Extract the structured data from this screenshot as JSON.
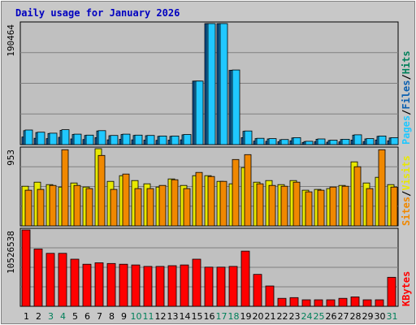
{
  "chart_data": {
    "type": "bar",
    "title": "Daily usage for January 2026",
    "days": [
      "1",
      "2",
      "3",
      "4",
      "5",
      "6",
      "7",
      "8",
      "9",
      "10",
      "11",
      "12",
      "13",
      "14",
      "15",
      "16",
      "17",
      "18",
      "19",
      "20",
      "21",
      "22",
      "23",
      "24",
      "25",
      "26",
      "27",
      "28",
      "29",
      "30",
      "31"
    ],
    "weekend_days": [
      "3",
      "4",
      "10",
      "11",
      "17",
      "18",
      "24",
      "25",
      "31"
    ],
    "panels": {
      "hits": {
        "max_label": "190464",
        "ylim": [
          0,
          190464
        ],
        "series": [
          {
            "name": "Pages",
            "color": "#0a5fb0",
            "values": [
              12000,
              10000,
              9500,
              11500,
              9000,
              8000,
              11000,
              7500,
              8500,
              7500,
              7000,
              6800,
              7000,
              7500,
              100000,
              190464,
              190464,
              117000,
              11000,
              5500,
              5200,
              4600,
              6000,
              3500,
              4700,
              3800,
              4400,
              7200,
              4900,
              7300,
              6000
            ]
          },
          {
            "name": "Files",
            "color": "#1a8fd0",
            "values": [
              22000,
              19000,
              17500,
              22500,
              16000,
              14500,
              21500,
              14000,
              16000,
              14500,
              14000,
              13000,
              13000,
              15500,
              100000,
              190464,
              190464,
              117000,
              21000,
              9500,
              9000,
              7500,
              10500,
              4800,
              8500,
              6500,
              8000,
              15000,
              9000,
              13000,
              10500
            ]
          },
          {
            "name": "Hits",
            "color": "#20c8ff",
            "values": [
              23000,
              19500,
              18000,
              23500,
              16500,
              15000,
              22000,
              14500,
              16500,
              15000,
              14500,
              13500,
              13500,
              16000,
              100000,
              190464,
              190464,
              117500,
              21500,
              10000,
              9500,
              8000,
              11000,
              5200,
              9000,
              7000,
              8500,
              15500,
              9500,
              13500,
              11000
            ]
          }
        ]
      },
      "visits": {
        "max_label": "953",
        "ylim": [
          0,
          953
        ],
        "series": [
          {
            "name": "Sites",
            "color": "#e8e800",
            "values": [
              490,
              540,
              510,
              480,
              530,
              480,
              953,
              550,
              620,
              560,
              520,
              480,
              580,
              500,
              620,
              620,
              550,
              520,
              720,
              540,
              560,
              510,
              560,
              440,
              450,
              460,
              500,
              790,
              530,
              600,
              510
            ]
          },
          {
            "name": "Visits",
            "color": "#f08800",
            "values": [
              440,
              450,
              500,
              940,
              500,
              460,
              870,
              450,
              640,
              460,
              460,
              500,
              570,
              460,
              660,
              610,
              550,
              820,
              880,
              520,
              500,
              490,
              540,
              420,
              440,
              480,
              490,
              730,
              460,
              940,
              480
            ]
          }
        ]
      },
      "kbytes": {
        "max_label": "10526538",
        "ylim": [
          0,
          10526538
        ],
        "series": [
          {
            "name": "KBytes",
            "color": "#ff0000",
            "values": [
              10526538,
              7900000,
              7300000,
              7300000,
              6500000,
              5800000,
              6000000,
              5900000,
              5800000,
              5700000,
              5500000,
              5500000,
              5600000,
              5700000,
              6500000,
              5400000,
              5400000,
              5500000,
              7600000,
              4400000,
              2800000,
              1100000,
              1200000,
              900000,
              900000,
              900000,
              1100000,
              1300000,
              900000,
              900000,
              4000000
            ]
          }
        ]
      }
    },
    "side_labels": {
      "hits": [
        {
          "text": "Pages",
          "color": "#20c8ff"
        },
        {
          "text": "Files",
          "color": "#0a5fb0"
        },
        {
          "text": "Hits",
          "color": "#00805a"
        }
      ],
      "visits": [
        {
          "text": "Sites",
          "color": "#f08800"
        },
        {
          "text": "Visits",
          "color": "#e8e800"
        }
      ],
      "kbytes": [
        {
          "text": "KBytes",
          "color": "#ff0000"
        }
      ]
    },
    "separator": "/",
    "colors": {
      "background": "#c8c8c8",
      "plot": "#c0c0c0",
      "title": "#0000c0",
      "weekday": "#000000",
      "weekend": "#00805a"
    }
  }
}
